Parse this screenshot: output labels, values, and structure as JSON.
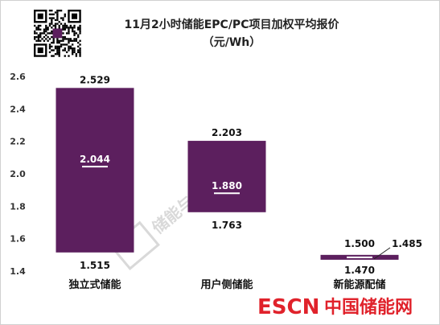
{
  "chart_data": {
    "type": "bar",
    "title": "11月2小时储能EPC/PC项目加权平均报价",
    "subtitle": "（元/Wh）",
    "xlabel": "",
    "ylabel": "",
    "ylim": [
      1.4,
      2.6
    ],
    "yticks": [
      "1.4",
      "1.6",
      "1.8",
      "2.0",
      "2.2",
      "2.4",
      "2.6"
    ],
    "grid": false,
    "legend": "none",
    "categories": [
      "独立式储能",
      "用户侧储能",
      "新能源配储"
    ],
    "high": [
      2.529,
      2.203,
      1.5
    ],
    "low": [
      1.515,
      1.763,
      1.47
    ],
    "average": [
      2.044,
      1.88,
      1.485
    ],
    "high_labels": [
      "2.529",
      "2.203",
      "1.500"
    ],
    "low_labels": [
      "1.515",
      "1.763",
      "1.470"
    ],
    "average_labels": [
      "2.044",
      "1.880",
      "1.485"
    ],
    "bar_color": "#5c1f5e",
    "average_line_color": "#ffffff"
  },
  "watermark": "储能与电力市场",
  "brand": {
    "latin": "ESCN",
    "chinese": "中国储能网",
    "color": "#e0222b"
  },
  "qr_code": "qr-code"
}
